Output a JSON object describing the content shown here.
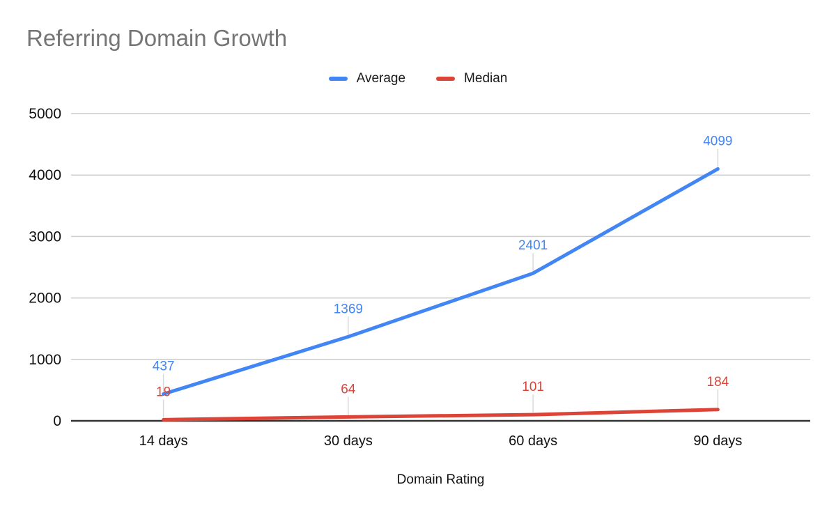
{
  "chart_data": {
    "type": "line",
    "title": "Referring Domain Growth",
    "xlabel": "Domain Rating",
    "ylabel": "",
    "categories": [
      "14 days",
      "30 days",
      "60 days",
      "90 days"
    ],
    "series": [
      {
        "name": "Average",
        "color": "#4285f4",
        "values": [
          437,
          1369,
          2401,
          4099
        ]
      },
      {
        "name": "Median",
        "color": "#db4437",
        "values": [
          19,
          64,
          101,
          184
        ]
      }
    ],
    "ylim": [
      0,
      5000
    ],
    "yticks": [
      0,
      1000,
      2000,
      3000,
      4000,
      5000
    ],
    "grid": true,
    "legend_position": "top-center",
    "annotations": true
  },
  "colors": {
    "title": "#757575",
    "axis_text": "#111111",
    "gridline": "#cccccc",
    "baseline": "#333333",
    "stem": "#dadada",
    "background": "#ffffff"
  }
}
